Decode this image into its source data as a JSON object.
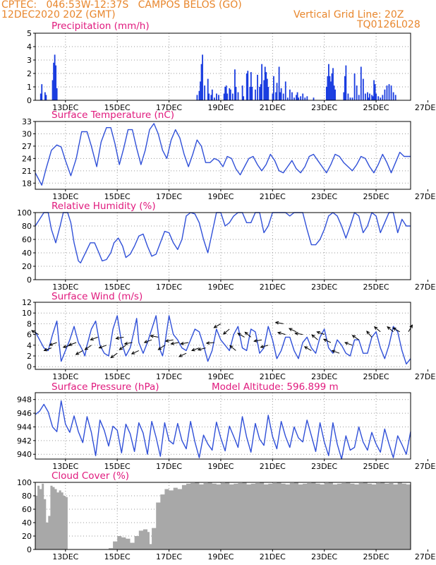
{
  "header": {
    "station": "CPTEC:   046:53W-12:37S   CAMPOS BELOS (GO)",
    "datetime": "12DEC2020 20Z (GMT)",
    "grid_note": "Vertical Grid Line: 20Z",
    "code": "TQ0126L028"
  },
  "panels": {
    "precip": {
      "title": "Precipitation (mm/h)"
    },
    "temp": {
      "title": "Surface Temperature (nC)"
    },
    "rh": {
      "title": "Relative Humidity (%)"
    },
    "wind": {
      "title": "Surface Wind (m/s)"
    },
    "press": {
      "title": "Surface Pressure (hPa)",
      "altitude_note": "Model Altitude: 596.899 m"
    },
    "cloud": {
      "title": "Cloud Cover (%)"
    }
  },
  "colors": {
    "line": "#3050d8",
    "bar": "#1a3de0",
    "cloud": "#a8a8a8",
    "title": "#e0197d",
    "header": "#e8862c"
  },
  "chart_data": [
    {
      "type": "bar",
      "title": "Precipitation (mm/h)",
      "xlim": [
        0,
        348
      ],
      "x_ticks": [
        [
          "13DEC",
          28
        ],
        [
          "15DEC",
          76
        ],
        [
          "17DEC",
          124
        ],
        [
          "19DEC",
          172
        ],
        [
          "21DEC",
          220
        ],
        [
          "23DEC",
          268
        ],
        [
          "25DEC",
          316
        ],
        [
          "27DEC",
          364
        ]
      ],
      "ylim": [
        0,
        5
      ],
      "yticks": [
        0,
        1,
        2,
        3,
        4,
        5
      ],
      "x": [
        5,
        6,
        9,
        10,
        16,
        17,
        18,
        19,
        20,
        150,
        152,
        153,
        154,
        155,
        157,
        160,
        161,
        163,
        164,
        166,
        168,
        170,
        175,
        176,
        177,
        178,
        180,
        181,
        183,
        185,
        186,
        188,
        192,
        193,
        196,
        197,
        199,
        200,
        201,
        204,
        206,
        208,
        209,
        210,
        212,
        213,
        214,
        215,
        216,
        220,
        221,
        223,
        224,
        226,
        227,
        228,
        230,
        232,
        234,
        236,
        238,
        240,
        242,
        243,
        244,
        246,
        248,
        250,
        252,
        258,
        270,
        271,
        272,
        273,
        274,
        275,
        276,
        277,
        278,
        286,
        287,
        288,
        290,
        292,
        294,
        296,
        298,
        300,
        302,
        304,
        306,
        308,
        309,
        310,
        312,
        313,
        314,
        315,
        316,
        318,
        320,
        322,
        324,
        326,
        328,
        330,
        332,
        334
      ],
      "values": [
        0.5,
        1.2,
        0.6,
        0.4,
        1.5,
        2.8,
        3.4,
        2.6,
        0.9,
        0.4,
        0.7,
        1.4,
        2.7,
        3.4,
        1.1,
        1.6,
        0.5,
        0.4,
        0.8,
        0.2,
        0.5,
        0.4,
        0.5,
        1.0,
        1.1,
        0.5,
        0.9,
        0.8,
        0.5,
        2.3,
        1.0,
        0.6,
        1.1,
        0.3,
        2.0,
        2.2,
        1.0,
        2.1,
        1.0,
        0.8,
        1.9,
        1.0,
        1.2,
        2.7,
        1.5,
        2.5,
        2.1,
        1.6,
        1.0,
        0.5,
        1.8,
        0.6,
        1.3,
        2.5,
        0.6,
        0.9,
        0.5,
        1.4,
        0.2,
        0.8,
        0.6,
        0.2,
        0.4,
        0.6,
        0.2,
        0.3,
        0.5,
        0.2,
        0.3,
        0.2,
        1.0,
        1.8,
        2.7,
        1.8,
        1.4,
        2.0,
        2.4,
        1.1,
        0.8,
        0.6,
        1.8,
        2.6,
        0.5,
        0.2,
        0.2,
        2.0,
        1.1,
        0.4,
        2.5,
        1.6,
        0.5,
        0.6,
        0.2,
        0.5,
        0.4,
        0.3,
        1.5,
        1.2,
        0.5,
        0.3,
        0.2,
        0.4,
        0.8,
        1.1,
        1.2,
        1.1,
        0.6,
        0.4
      ]
    },
    {
      "type": "line",
      "title": "Surface Temperature (nC)",
      "xlim": [
        0,
        348
      ],
      "ylim": [
        16.5,
        33
      ],
      "yticks": [
        18,
        21,
        24,
        27,
        30,
        33
      ],
      "x": [
        0,
        6,
        10,
        15,
        20,
        24,
        28,
        33,
        38,
        43,
        48,
        52,
        57,
        61,
        66,
        70,
        74,
        78,
        82,
        86,
        90,
        94,
        98,
        102,
        106,
        110,
        114,
        118,
        122,
        126,
        130,
        134,
        138,
        142,
        146,
        150,
        154,
        158,
        162,
        166,
        170,
        174,
        178,
        182,
        186,
        190,
        194,
        198,
        202,
        206,
        210,
        214,
        218,
        222,
        226,
        230,
        234,
        238,
        242,
        246,
        250,
        254,
        258,
        262,
        266,
        270,
        274,
        278,
        282,
        286,
        290,
        294,
        298,
        302,
        306,
        310,
        314,
        318,
        322,
        326,
        330,
        334,
        338,
        342,
        348
      ],
      "values": [
        20.5,
        17.5,
        21.5,
        26.0,
        27.3,
        26.8,
        23.5,
        19.8,
        24.0,
        30.5,
        30.5,
        27.0,
        22.0,
        28.0,
        31.5,
        31.5,
        27.5,
        22.5,
        26.5,
        31.0,
        31.0,
        26.5,
        22.5,
        26.0,
        31.0,
        32.5,
        30.0,
        26.0,
        24.0,
        28.5,
        31.0,
        29.0,
        25.0,
        22.0,
        25.0,
        28.5,
        27.0,
        23.0,
        23.0,
        24.0,
        23.5,
        22.0,
        24.5,
        24.0,
        21.5,
        20.0,
        22.0,
        24.0,
        24.5,
        22.5,
        21.0,
        22.5,
        25.0,
        23.5,
        21.0,
        20.5,
        22.0,
        23.5,
        21.5,
        20.5,
        22.0,
        24.5,
        25.0,
        23.5,
        22.0,
        20.5,
        22.5,
        25.0,
        24.5,
        23.0,
        22.0,
        21.0,
        22.5,
        24.5,
        24.0,
        22.0,
        20.5,
        22.5,
        25.0,
        23.0,
        20.5,
        23.0,
        25.5,
        24.5,
        24.5
      ]
    },
    {
      "type": "line",
      "title": "Relative Humidity (%)",
      "xlim": [
        0,
        348
      ],
      "ylim": [
        0,
        100
      ],
      "yticks": [
        0,
        20,
        40,
        60,
        80,
        100
      ],
      "x": [
        0,
        4,
        8,
        12,
        15,
        19,
        23,
        26,
        30,
        33,
        36,
        40,
        42,
        45,
        48,
        51,
        55,
        59,
        62,
        66,
        70,
        73,
        77,
        81,
        84,
        88,
        92,
        96,
        100,
        104,
        108,
        112,
        116,
        120,
        124,
        128,
        132,
        136,
        140,
        144,
        148,
        152,
        156,
        160,
        164,
        168,
        172,
        176,
        180,
        184,
        188,
        192,
        196,
        200,
        204,
        208,
        212,
        216,
        220,
        224,
        228,
        232,
        236,
        240,
        244,
        248,
        252,
        256,
        260,
        264,
        268,
        272,
        276,
        280,
        284,
        288,
        292,
        296,
        300,
        304,
        308,
        312,
        316,
        320,
        324,
        328,
        332,
        336,
        340,
        344,
        348
      ],
      "values": [
        80,
        90,
        100,
        100,
        75,
        55,
        80,
        100,
        100,
        85,
        55,
        28,
        25,
        35,
        45,
        55,
        55,
        40,
        28,
        30,
        40,
        55,
        62,
        50,
        33,
        38,
        50,
        65,
        68,
        50,
        35,
        38,
        55,
        72,
        70,
        55,
        45,
        60,
        95,
        100,
        98,
        85,
        60,
        40,
        70,
        100,
        100,
        80,
        85,
        95,
        100,
        100,
        85,
        85,
        100,
        100,
        70,
        80,
        100,
        100,
        100,
        100,
        95,
        100,
        100,
        100,
        75,
        52,
        52,
        60,
        75,
        95,
        100,
        95,
        80,
        62,
        80,
        100,
        95,
        70,
        80,
        100,
        95,
        70,
        85,
        100,
        100,
        70,
        90,
        80,
        80
      ]
    },
    {
      "type": "line",
      "title": "Surface Wind (m/s)",
      "xlim": [
        0,
        348
      ],
      "ylim": [
        -0.5,
        12
      ],
      "yticks": [
        0,
        2,
        4,
        6,
        8,
        10,
        12
      ],
      "x": [
        0,
        4,
        8,
        12,
        16,
        20,
        22,
        24,
        28,
        32,
        36,
        40,
        44,
        46,
        48,
        52,
        56,
        60,
        64,
        68,
        70,
        72,
        76,
        80,
        84,
        88,
        92,
        94,
        96,
        100,
        104,
        108,
        112,
        116,
        118,
        120,
        124,
        128,
        132,
        136,
        140,
        144,
        148,
        152,
        156,
        160,
        164,
        168,
        172,
        176,
        180,
        184,
        188,
        192,
        196,
        200,
        204,
        208,
        212,
        216,
        220,
        224,
        228,
        232,
        236,
        240,
        244,
        248,
        252,
        256,
        260,
        264,
        268,
        272,
        276,
        280,
        284,
        288,
        292,
        296,
        300,
        304,
        308,
        312,
        316,
        320,
        324,
        328,
        332,
        336,
        340,
        344,
        348
      ],
      "values": [
        6.5,
        5.0,
        3.5,
        3.0,
        6.0,
        8.5,
        4.5,
        1.0,
        3.0,
        5.0,
        7.5,
        4.5,
        3.0,
        2.0,
        4.0,
        7.0,
        8.5,
        4.0,
        2.5,
        2.0,
        4.5,
        7.0,
        9.5,
        4.5,
        2.0,
        3.5,
        7.0,
        9.0,
        4.5,
        2.5,
        4.5,
        7.0,
        9.5,
        3.0,
        2.0,
        4.0,
        9.5,
        6.0,
        5.0,
        3.5,
        3.0,
        5.0,
        7.0,
        6.5,
        4.0,
        1.0,
        3.0,
        7.0,
        5.0,
        4.0,
        3.0,
        6.0,
        7.5,
        3.5,
        3.0,
        7.0,
        6.5,
        2.5,
        3.5,
        7.5,
        5.0,
        1.5,
        3.0,
        5.5,
        5.5,
        3.0,
        1.5,
        4.5,
        5.5,
        3.5,
        2.5,
        5.5,
        7.0,
        3.5,
        2.5,
        5.0,
        4.0,
        2.5,
        2.0,
        5.0,
        5.0,
        2.5,
        2.5,
        5.5,
        6.5,
        3.5,
        1.5,
        4.0,
        7.5,
        6.5,
        3.0,
        0.5,
        1.5
      ],
      "arrow_x": [
        3,
        15,
        20,
        33,
        38,
        44,
        52,
        58,
        66,
        76,
        82,
        84,
        90,
        96,
        108,
        114,
        120,
        128,
        133,
        140,
        142,
        152,
        158,
        166,
        172,
        180,
        186,
        194,
        200,
        210,
        216,
        230,
        232,
        242,
        248,
        256,
        262,
        268,
        274,
        282,
        294,
        300,
        312,
        320,
        332,
        338,
        346
      ],
      "arrow_y": [
        6.0,
        3.5,
        4.5,
        4.0,
        4.5,
        3.0,
        4.0,
        5.5,
        4.0,
        2.5,
        5.5,
        4.0,
        4.5,
        3.0,
        5.0,
        5.5,
        4.0,
        5.0,
        4.5,
        2.5,
        4.5,
        3.5,
        3.5,
        4.5,
        8.0,
        7.0,
        3.0,
        5.5,
        5.5,
        5.0,
        4.0,
        8.0,
        6.0,
        6.5,
        6.0,
        3.0,
        5.0,
        6.0,
        4.5,
        2.5,
        4.0,
        5.0,
        5.5,
        6.5,
        6.5,
        6.5,
        6.5
      ],
      "arrow_dir_deg": [
        150,
        200,
        200,
        195,
        200,
        210,
        215,
        200,
        200,
        215,
        190,
        215,
        190,
        205,
        200,
        170,
        215,
        190,
        190,
        205,
        190,
        200,
        195,
        185,
        210,
        220,
        140,
        150,
        140,
        190,
        195,
        170,
        165,
        155,
        170,
        150,
        140,
        160,
        155,
        160,
        160,
        145,
        130,
        140,
        140,
        150,
        60
      ]
    },
    {
      "type": "line",
      "title": "Surface Pressure (hPa)",
      "xlim": [
        0,
        348
      ],
      "ylim": [
        939.3,
        949
      ],
      "yticks": [
        940,
        942,
        944,
        946,
        948
      ],
      "x": [
        0,
        4,
        8,
        12,
        16,
        20,
        24,
        28,
        32,
        36,
        40,
        44,
        48,
        52,
        56,
        60,
        64,
        68,
        72,
        76,
        80,
        84,
        88,
        92,
        96,
        100,
        104,
        108,
        112,
        116,
        120,
        124,
        128,
        132,
        136,
        140,
        144,
        148,
        152,
        156,
        160,
        164,
        168,
        172,
        176,
        180,
        184,
        188,
        192,
        196,
        200,
        204,
        208,
        212,
        216,
        220,
        224,
        228,
        232,
        236,
        240,
        244,
        248,
        252,
        256,
        260,
        264,
        268,
        272,
        276,
        280,
        284,
        288,
        292,
        296,
        300,
        304,
        308,
        312,
        316,
        320,
        324,
        328,
        332,
        336,
        340,
        344,
        348
      ],
      "values": [
        945.8,
        946.3,
        947.3,
        946.2,
        944.0,
        943.3,
        947.8,
        944.4,
        943.2,
        945.6,
        943.3,
        941.7,
        945.5,
        943.2,
        939.8,
        945.0,
        943.5,
        941.2,
        944.1,
        943.5,
        940.2,
        944.4,
        943.0,
        940.4,
        944.6,
        943.1,
        940.0,
        944.8,
        942.5,
        939.7,
        944.6,
        942.0,
        941.5,
        944.5,
        942.0,
        940.8,
        944.8,
        941.8,
        939.5,
        942.8,
        941.5,
        940.6,
        944.7,
        942.4,
        940.5,
        944.1,
        942.6,
        941.0,
        945.5,
        942.5,
        940.3,
        944.5,
        942.2,
        941.3,
        945.7,
        942.6,
        940.8,
        944.8,
        942.6,
        941.0,
        944.0,
        942.4,
        941.8,
        945.0,
        942.7,
        940.4,
        944.6,
        941.8,
        939.8,
        944.6,
        941.5,
        939.3,
        942.7,
        940.6,
        941.0,
        944.0,
        941.8,
        940.6,
        943.2,
        941.5,
        940.3,
        943.7,
        941.5,
        939.5,
        942.7,
        941.4,
        940.0,
        943.3
      ]
    },
    {
      "type": "area",
      "title": "Cloud Cover (%)",
      "xlim": [
        0,
        348
      ],
      "ylim": [
        0,
        100
      ],
      "yticks": [
        0,
        20,
        40,
        60,
        80,
        100
      ],
      "x": [
        0,
        2,
        4,
        6,
        8,
        10,
        12,
        14,
        16,
        18,
        20,
        22,
        24,
        26,
        28,
        30,
        50,
        60,
        68,
        72,
        76,
        80,
        84,
        88,
        92,
        96,
        100,
        104,
        106,
        108,
        112,
        116,
        120,
        124,
        128,
        132,
        136,
        140,
        144,
        148,
        152,
        156,
        160,
        164,
        168,
        172,
        176,
        180,
        184,
        188,
        192,
        196,
        200,
        204,
        208,
        212,
        216,
        220,
        224,
        228,
        232,
        236,
        240,
        244,
        248,
        252,
        256,
        260,
        264,
        268,
        272,
        276,
        280,
        284,
        288,
        292,
        296,
        300,
        304,
        308,
        312,
        316,
        320,
        324,
        328,
        332,
        336,
        340,
        344,
        348
      ],
      "values": [
        80,
        95,
        90,
        98,
        75,
        40,
        50,
        95,
        93,
        90,
        85,
        88,
        85,
        80,
        78,
        0,
        0,
        0,
        2,
        12,
        20,
        18,
        16,
        10,
        20,
        28,
        30,
        26,
        8,
        32,
        70,
        82,
        90,
        88,
        92,
        90,
        96,
        98,
        99,
        100,
        97,
        99,
        100,
        98,
        97,
        99,
        100,
        97,
        98,
        99,
        100,
        97,
        98,
        99,
        100,
        97,
        98,
        99,
        100,
        98,
        97,
        99,
        100,
        97,
        98,
        99,
        100,
        98,
        97,
        99,
        100,
        97,
        98,
        99,
        100,
        98,
        97,
        99,
        100,
        98,
        97,
        99,
        100,
        98,
        99,
        97,
        100,
        98,
        97,
        99
      ]
    }
  ]
}
